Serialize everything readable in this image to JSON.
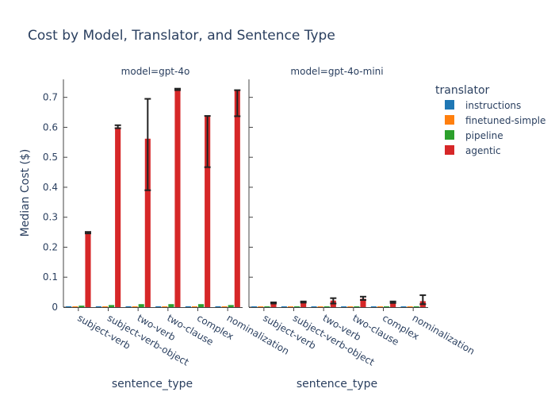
{
  "chart_data": {
    "type": "bar",
    "title": "Cost by Model, Translator, and Sentence Type",
    "ylabel": "Median Cost ($)",
    "xlabel": "sentence_type",
    "ylim": [
      0,
      0.76
    ],
    "yticks": [
      0,
      0.1,
      0.2,
      0.3,
      0.4,
      0.5,
      0.6,
      0.7
    ],
    "yticklabels": [
      "0",
      "0.1",
      "0.2",
      "0.3",
      "0.4",
      "0.5",
      "0.6",
      "0.7"
    ],
    "categories": [
      "subject-verb",
      "subject-verb-object",
      "two-verb",
      "two-clause",
      "complex",
      "nominalization"
    ],
    "legend": {
      "title": "translator",
      "position": "right"
    },
    "series": [
      {
        "name": "instructions",
        "color": "#1f77b4"
      },
      {
        "name": "finetuned-simple",
        "color": "#ff7f0e"
      },
      {
        "name": "pipeline",
        "color": "#2ca02c"
      },
      {
        "name": "agentic",
        "color": "#d62728"
      }
    ],
    "panels": [
      {
        "label": "model=gpt-4o",
        "values": {
          "instructions": [
            0.003,
            0.003,
            0.003,
            0.003,
            0.003,
            0.003
          ],
          "finetuned-simple": [
            0.001,
            0.001,
            0.001,
            0.001,
            0.001,
            0.001
          ],
          "pipeline": [
            0.005,
            0.007,
            0.01,
            0.01,
            0.01,
            0.007
          ],
          "agentic": [
            0.248,
            0.6,
            0.562,
            0.726,
            0.636,
            0.722
          ]
        },
        "agentic_error": [
          [
            0.246,
            0.251
          ],
          [
            0.597,
            0.607
          ],
          [
            0.39,
            0.695
          ],
          [
            0.724,
            0.729
          ],
          [
            0.467,
            0.638
          ],
          [
            0.637,
            0.724
          ]
        ]
      },
      {
        "label": "model=gpt-4o-mini",
        "values": {
          "instructions": [
            0.0005,
            0.0005,
            0.0005,
            0.0005,
            0.0005,
            0.0005
          ],
          "finetuned-simple": [
            0.0002,
            0.0002,
            0.0002,
            0.0002,
            0.0002,
            0.0002
          ],
          "pipeline": [
            0.001,
            0.001,
            0.001,
            0.001,
            0.001,
            0.001
          ],
          "agentic": [
            0.014,
            0.017,
            0.022,
            0.028,
            0.016,
            0.02
          ]
        },
        "agentic_error": [
          [
            0.012,
            0.016
          ],
          [
            0.015,
            0.019
          ],
          [
            0.012,
            0.03
          ],
          [
            0.024,
            0.035
          ],
          [
            0.014,
            0.019
          ],
          [
            0.01,
            0.04
          ]
        ]
      }
    ]
  }
}
